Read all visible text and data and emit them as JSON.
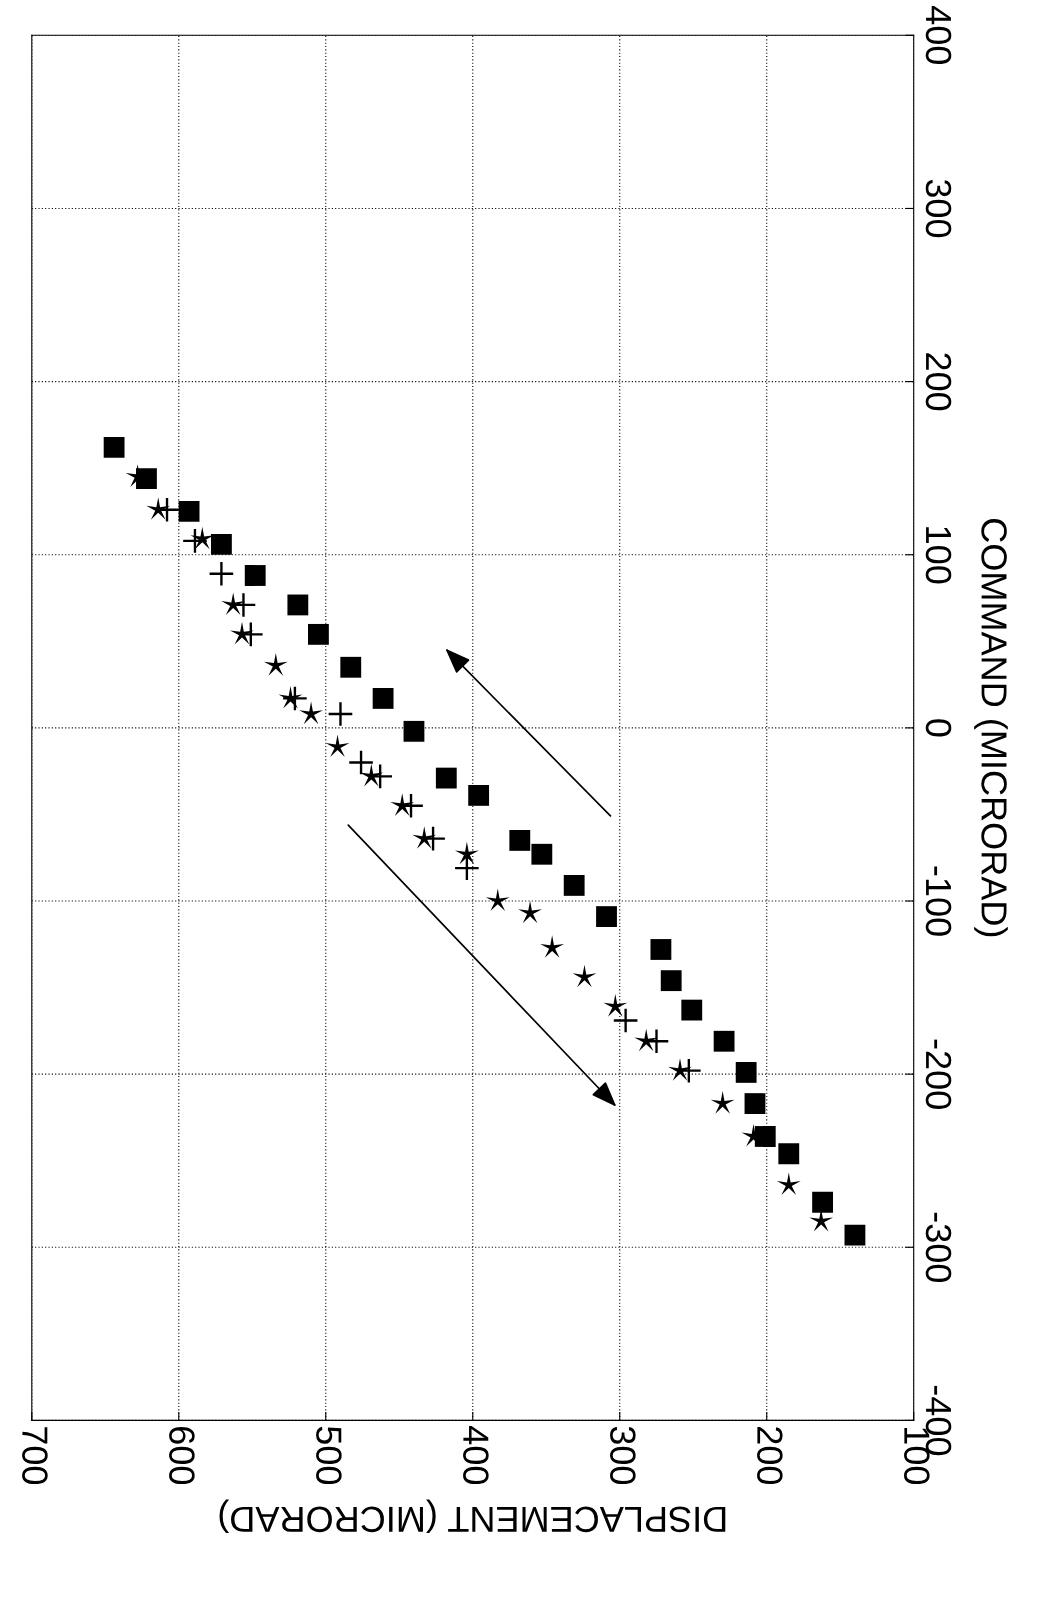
{
  "chart_data": {
    "type": "scatter",
    "xlabel": "DISPLACEMENT (MICRORAD)",
    "ylabel": "COMMAND (MICRORAD)",
    "xlim": [
      700,
      100
    ],
    "xticks": [
      700,
      600,
      500,
      400,
      300,
      200,
      100
    ],
    "ylim": [
      -400,
      400
    ],
    "yticks": [
      -400,
      -300,
      -200,
      -100,
      0,
      100,
      200,
      300,
      400
    ],
    "grid": true,
    "legend": false,
    "series": [
      {
        "color": "#000000",
        "marker": "square",
        "values": [
          162,
          144,
          125,
          106,
          88,
          71,
          54,
          35,
          17,
          -2,
          -29,
          -39,
          -65,
          -73,
          -91,
          -109,
          -128,
          -146,
          -163,
          -181,
          -199,
          -217,
          -236,
          -246,
          -274,
          -293
        ],
        "x": [
          644,
          622,
          593,
          571,
          548,
          519,
          505,
          483,
          461,
          440,
          418,
          396,
          368,
          353,
          331,
          309,
          272,
          265,
          251,
          229,
          214,
          208,
          201,
          185,
          162,
          140
        ]
      },
      {
        "color": "#000000",
        "marker": "star",
        "values": [
          145,
          126,
          109,
          71,
          54,
          36,
          17,
          8,
          -11,
          -28,
          -45,
          -64,
          -73,
          -100,
          -107,
          -127,
          -144,
          -161,
          -181,
          -198,
          -217,
          -236,
          -264,
          -285
        ],
        "x": [
          628,
          614,
          584,
          563,
          557,
          534,
          524,
          510,
          492,
          469,
          448,
          433,
          404,
          383,
          361,
          346,
          324,
          303,
          282,
          259,
          230,
          209,
          185,
          163
        ]
      },
      {
        "color": "#000000",
        "marker": "cross",
        "values": [
          126,
          108,
          89,
          71,
          54,
          17,
          8,
          -20,
          -28,
          -45,
          -64,
          -81,
          -169,
          -181,
          -198
        ],
        "x": [
          608,
          589,
          571,
          556,
          551,
          521,
          490,
          476,
          463,
          442,
          427,
          404,
          296,
          275,
          253
        ]
      }
    ]
  }
}
